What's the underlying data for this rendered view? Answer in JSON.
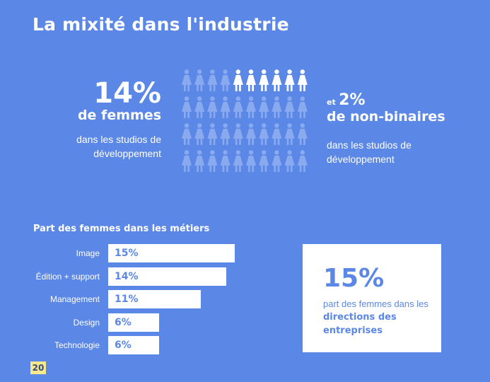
{
  "title": "La mixité dans l'industrie",
  "left_stat": {
    "pct": "14%",
    "label": "de femmes",
    "note_line1": "dans les studios de",
    "note_line2": "développement"
  },
  "right_stat": {
    "prefix": "et",
    "pct": "2%",
    "label": "de non-binaires",
    "note_line1": "dans les studios de",
    "note_line2": "développement"
  },
  "pictogram": {
    "rows": 4,
    "cols": 10,
    "highlighted": 6,
    "color_base": "#8aaaf0",
    "color_highlight": "#ffffff"
  },
  "chart_title": "Part des femmes dans les métiers",
  "chart_data": {
    "type": "bar",
    "orientation": "horizontal",
    "categories": [
      "Image",
      "Édition + support",
      "Management",
      "Design",
      "Technologie"
    ],
    "values": [
      15,
      14,
      11,
      6,
      6
    ],
    "value_labels": [
      "15%",
      "14%",
      "11%",
      "6%",
      "6%"
    ],
    "title": "Part des femmes dans les métiers",
    "bar_color": "#ffffff"
  },
  "card": {
    "pct": "15%",
    "text_plain": "part des femmes dans les ",
    "text_bold": "directions des entreprises"
  },
  "page_number": "20",
  "colors": {
    "background": "#5b87e6",
    "accent": "#f5e98a"
  }
}
